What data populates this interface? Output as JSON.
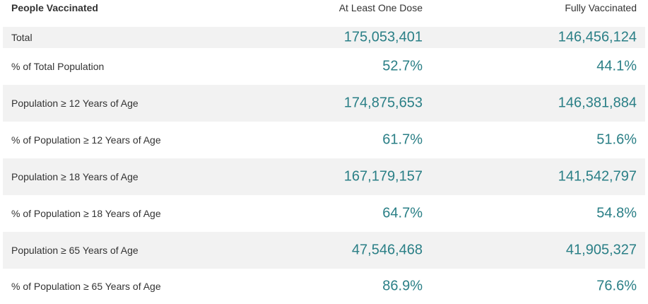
{
  "table": {
    "header": {
      "label": "People Vaccinated",
      "dose1": "At Least One Dose",
      "full": "Fully Vaccinated"
    },
    "rows": [
      {
        "label": "Total",
        "dose1": "175,053,401",
        "full": "146,456,124"
      },
      {
        "label": "% of Total Population",
        "dose1": "52.7%",
        "full": "44.1%"
      },
      {
        "label": "Population ≥ 12 Years of Age",
        "dose1": "174,875,653",
        "full": "146,381,884"
      },
      {
        "label": "% of Population ≥ 12 Years of Age",
        "dose1": "61.7%",
        "full": "51.6%"
      },
      {
        "label": "Population ≥ 18 Years of Age",
        "dose1": "167,179,157",
        "full": "141,542,797"
      },
      {
        "label": "% of Population ≥ 18 Years of Age",
        "dose1": "64.7%",
        "full": "54.8%"
      },
      {
        "label": "Population ≥ 65 Years of Age",
        "dose1": "47,546,468",
        "full": "41,905,327"
      },
      {
        "label": "% of Population ≥ 65 Years of Age",
        "dose1": "86.9%",
        "full": "76.6%"
      }
    ]
  }
}
